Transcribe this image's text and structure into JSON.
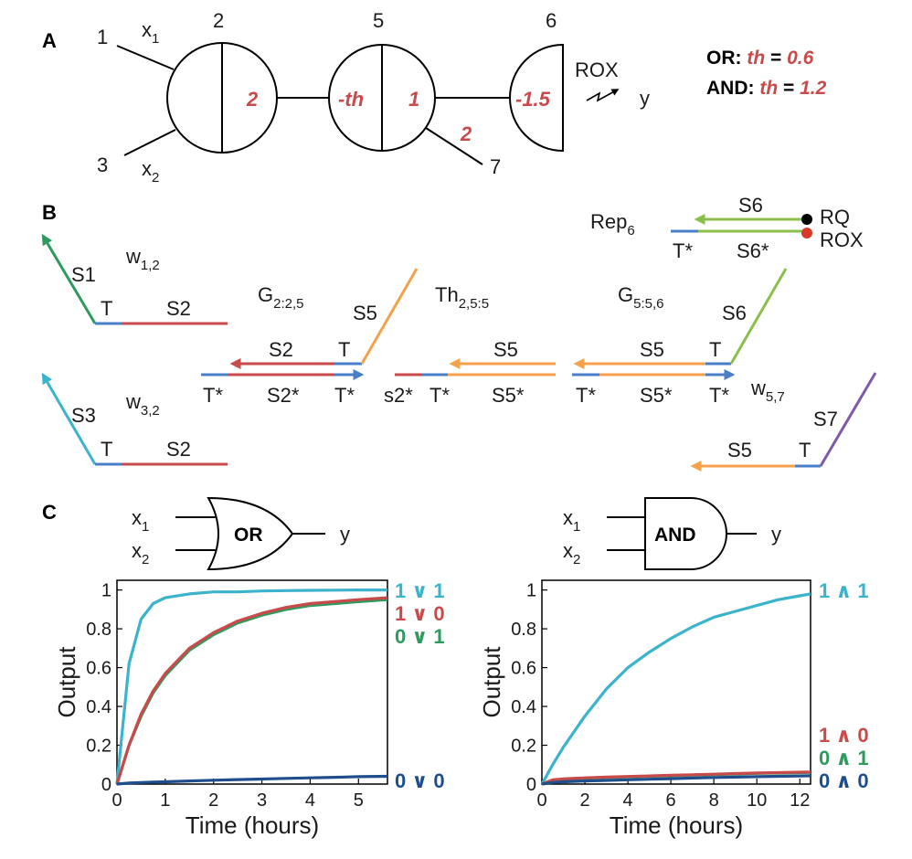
{
  "panels": {
    "a": "A",
    "b": "B",
    "c": "C"
  },
  "colors": {
    "red_strand": "#c94a4a",
    "blue_toehold": "#4a7fc8",
    "orange": "#f5a04a",
    "green": "#2e9a5e",
    "lightgreen": "#8cbf4a",
    "cyan": "#3bb3cc",
    "purple": "#7f5aa8",
    "navy": "#1f4e8c"
  },
  "panel_a": {
    "node_labels": [
      "1",
      "2",
      "3",
      "5",
      "6",
      "7"
    ],
    "input_x1_base": "x",
    "input_x1_sub": "1",
    "input_x2_base": "x",
    "input_x2_sub": "2",
    "node2_weight": "2",
    "node5_threshold": "-th",
    "node5_weight": "1",
    "edge_5_7_weight": "2",
    "node6_threshold": "-1.5",
    "reporter": "ROX",
    "output": "y",
    "or_label": "OR:",
    "and_label": "AND:",
    "th_word": "th",
    "equals": "=",
    "or_th": "0.6",
    "and_th": "1.2"
  },
  "panel_b": {
    "rep_base": "Rep",
    "rep_sub": "6",
    "rq": "RQ",
    "rox": "ROX",
    "s6": "S6",
    "s6star": "S6*",
    "tstar": "T*",
    "t": "T",
    "s1": "S1",
    "s2": "S2",
    "s2star": "S2*",
    "s2lower": "s2*",
    "s3": "S3",
    "s5": "S5",
    "s5star": "S5*",
    "s7": "S7",
    "w12_base": "w",
    "w12_sub": "1,2",
    "w32_base": "w",
    "w32_sub": "3,2",
    "w57_base": "w",
    "w57_sub": "5,7",
    "g225_base": "G",
    "g225_sub": "2:2,5",
    "th255_base": "Th",
    "th255_sub": "2,5:5",
    "g556_base": "G",
    "g556_sub": "5:5,6"
  },
  "panel_c": {
    "or_gate": "OR",
    "and_gate": "AND",
    "gate_x1_base": "x",
    "gate_x1_sub": "1",
    "gate_x2_base": "x",
    "gate_x2_sub": "2",
    "gate_out": "y",
    "ylabel": "Output",
    "xlabel": "Time (hours)",
    "or_legend": [
      "1 ∨ 1",
      "1 ∨ 0",
      "0 ∨ 1",
      "0 ∨ 0"
    ],
    "and_legend": [
      "1 ∧ 1",
      "1 ∧ 0",
      "0 ∧ 1",
      "0 ∧ 0"
    ]
  },
  "chart_data": [
    {
      "type": "line",
      "title": "",
      "xlabel": "Time (hours)",
      "ylabel": "Output",
      "xlim": [
        0,
        5.6
      ],
      "ylim": [
        0,
        1.05
      ],
      "xticks": [
        0,
        1,
        2,
        3,
        4,
        5
      ],
      "yticks": [
        0,
        0.2,
        0.4,
        0.6,
        0.8,
        1
      ],
      "x": [
        0,
        0.25,
        0.5,
        0.75,
        1,
        1.5,
        2,
        2.5,
        3,
        3.5,
        4,
        4.5,
        5,
        5.6
      ],
      "series": [
        {
          "name": "1 ∨ 1",
          "color": "#3bb3cc",
          "values": [
            0,
            0.62,
            0.85,
            0.93,
            0.96,
            0.98,
            0.99,
            0.99,
            0.995,
            0.997,
            0.998,
            0.999,
            1.0,
            1.0
          ]
        },
        {
          "name": "0 ∨ 1",
          "color": "#2e9a5e",
          "values": [
            0,
            0.2,
            0.35,
            0.47,
            0.56,
            0.69,
            0.77,
            0.83,
            0.87,
            0.9,
            0.92,
            0.93,
            0.94,
            0.95
          ]
        },
        {
          "name": "1 ∨ 0",
          "color": "#c94a4a",
          "values": [
            0,
            0.2,
            0.36,
            0.48,
            0.57,
            0.7,
            0.78,
            0.84,
            0.88,
            0.91,
            0.93,
            0.94,
            0.95,
            0.96
          ]
        },
        {
          "name": "0 ∨ 0",
          "color": "#1f4e8c",
          "values": [
            0,
            0.005,
            0.008,
            0.01,
            0.012,
            0.016,
            0.02,
            0.023,
            0.026,
            0.029,
            0.032,
            0.035,
            0.038,
            0.04
          ]
        }
      ]
    },
    {
      "type": "line",
      "title": "",
      "xlabel": "Time (hours)",
      "ylabel": "Output",
      "xlim": [
        0,
        12.5
      ],
      "ylim": [
        0,
        1.05
      ],
      "xticks": [
        0,
        2,
        4,
        6,
        8,
        10,
        12
      ],
      "yticks": [
        0,
        0.2,
        0.4,
        0.6,
        0.8,
        1
      ],
      "x": [
        0,
        0.5,
        1,
        2,
        3,
        4,
        5,
        6,
        7,
        8,
        9,
        10,
        11,
        12,
        12.5
      ],
      "series": [
        {
          "name": "1 ∧ 1",
          "color": "#3bb3cc",
          "values": [
            0,
            0.1,
            0.19,
            0.35,
            0.49,
            0.6,
            0.68,
            0.75,
            0.81,
            0.86,
            0.89,
            0.92,
            0.95,
            0.97,
            0.98
          ]
        },
        {
          "name": "0 ∧ 1",
          "color": "#2e9a5e",
          "values": [
            0,
            0.02,
            0.025,
            0.03,
            0.034,
            0.037,
            0.04,
            0.043,
            0.046,
            0.049,
            0.052,
            0.055,
            0.057,
            0.059,
            0.06
          ]
        },
        {
          "name": "1 ∧ 0",
          "color": "#c94a4a",
          "values": [
            0,
            0.022,
            0.027,
            0.032,
            0.036,
            0.039,
            0.042,
            0.045,
            0.048,
            0.051,
            0.054,
            0.057,
            0.059,
            0.061,
            0.062
          ]
        },
        {
          "name": "0 ∧ 0",
          "color": "#1f4e8c",
          "values": [
            0,
            0.008,
            0.012,
            0.016,
            0.019,
            0.022,
            0.025,
            0.028,
            0.031,
            0.034,
            0.036,
            0.038,
            0.04,
            0.042,
            0.043
          ]
        }
      ]
    }
  ]
}
